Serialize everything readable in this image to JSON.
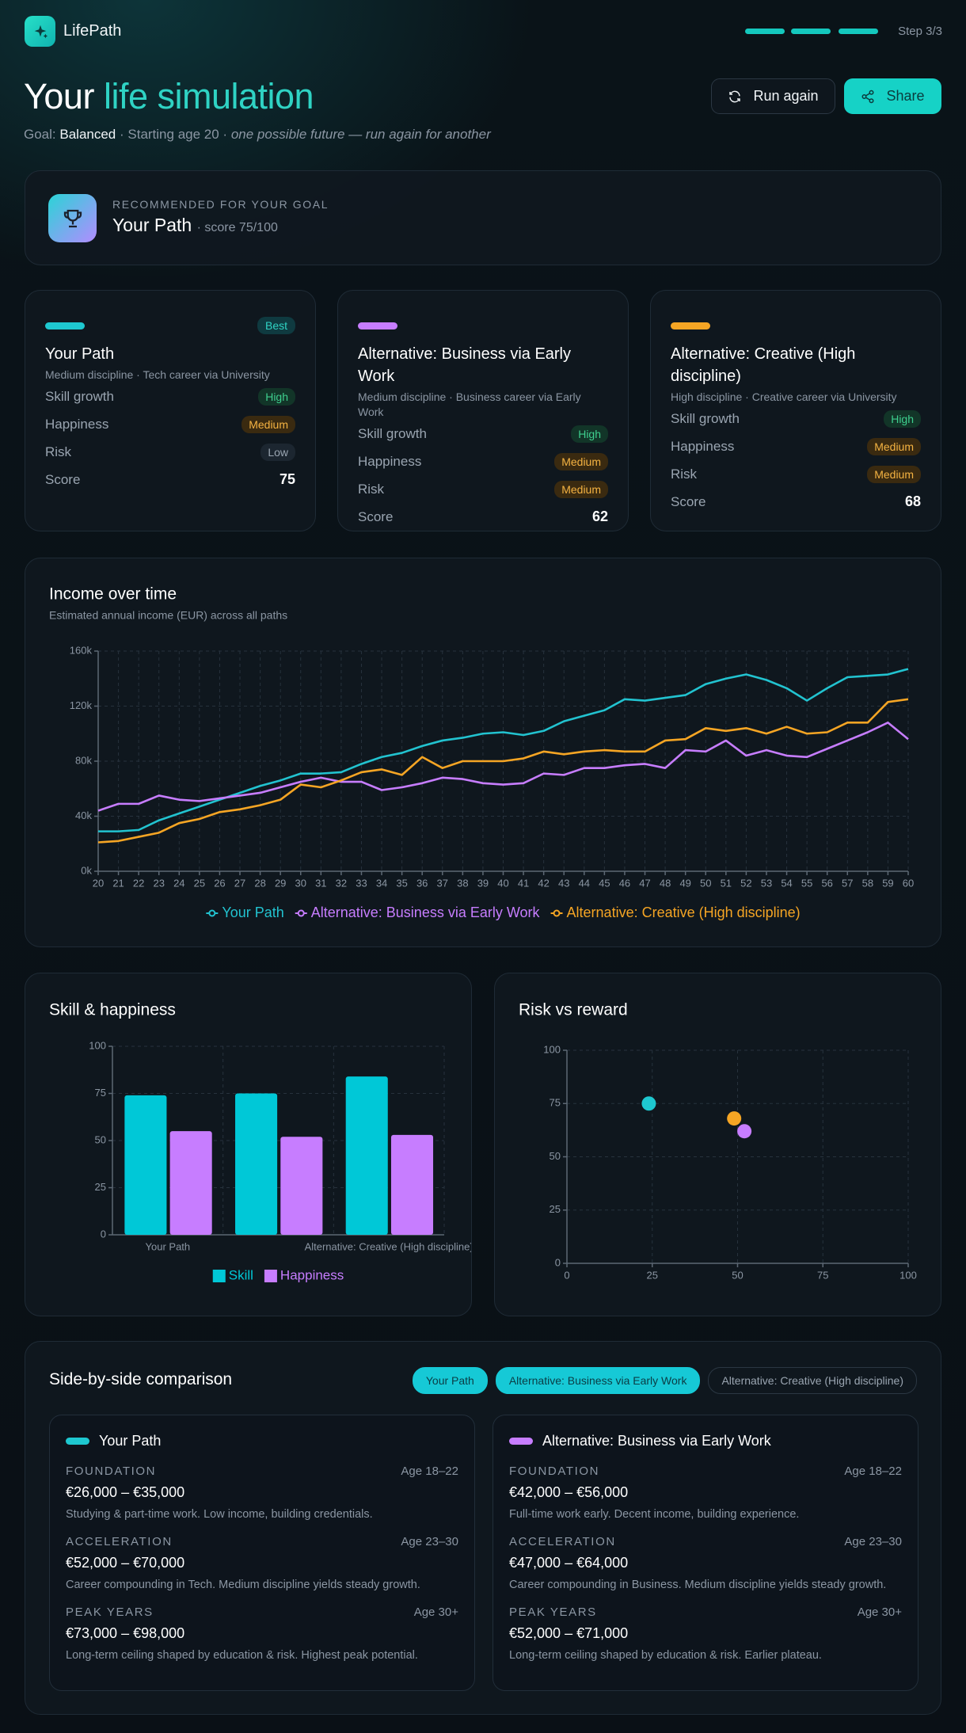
{
  "header": {
    "brand": "LifePath",
    "step": "Step 3/3"
  },
  "hero": {
    "title_prefix": "Your",
    "title_highlight": "life simulation",
    "goal_label": "Goal:",
    "goal": "Balanced",
    "age_text": "· Starting age 20 ·",
    "note": "one possible future — run again for another",
    "run_again": "Run again",
    "share": "Share"
  },
  "recommended": {
    "label": "RECOMMENDED FOR YOUR GOAL",
    "name": "Your Path",
    "score": "· score 75/100"
  },
  "paths": [
    {
      "name": "Your Path",
      "badge": "Best",
      "color": "#1ec8d0",
      "subtitle": "Medium discipline · Tech career via University",
      "metrics": [
        {
          "label": "Skill growth",
          "value": "High"
        },
        {
          "label": "Happiness",
          "value": "Medium"
        },
        {
          "label": "Risk",
          "value": "Low"
        }
      ],
      "score_label": "Score",
      "score": 75
    },
    {
      "name": "Alternative: Business via Early Work",
      "color": "#c77dff",
      "subtitle": "Medium discipline · Business career via Early Work",
      "metrics": [
        {
          "label": "Skill growth",
          "value": "High"
        },
        {
          "label": "Happiness",
          "value": "Medium"
        },
        {
          "label": "Risk",
          "value": "Medium"
        }
      ],
      "score_label": "Score",
      "score": 62
    },
    {
      "name": "Alternative: Creative (High discipline)",
      "color": "#f5a524",
      "subtitle": "High discipline · Creative career via University",
      "metrics": [
        {
          "label": "Skill growth",
          "value": "High"
        },
        {
          "label": "Happiness",
          "value": "Medium"
        },
        {
          "label": "Risk",
          "value": "Medium"
        }
      ],
      "score_label": "Score",
      "score": 68
    }
  ],
  "chart_data": [
    {
      "type": "line",
      "title": "Income over time",
      "subtitle": "Estimated annual income (EUR) across all paths",
      "x": [
        20,
        21,
        22,
        23,
        24,
        25,
        26,
        27,
        28,
        29,
        30,
        31,
        32,
        33,
        34,
        35,
        36,
        37,
        38,
        39,
        40,
        41,
        42,
        43,
        44,
        45,
        46,
        47,
        48,
        49,
        50,
        51,
        52,
        53,
        54,
        55,
        56,
        57,
        58,
        59,
        60
      ],
      "xlim": [
        20,
        60
      ],
      "ylim": [
        0,
        160000
      ],
      "yticks": [
        {
          "value": 0,
          "label": "0k"
        },
        {
          "value": 40000,
          "label": "40k"
        },
        {
          "value": 80000,
          "label": "80k"
        },
        {
          "value": 120000,
          "label": "120k"
        },
        {
          "value": 160000,
          "label": "160k"
        }
      ],
      "grid": true,
      "series": [
        {
          "name": "Your Path",
          "color": "#22c3d0",
          "values": [
            29000,
            29000,
            30000,
            37000,
            42000,
            47000,
            52000,
            57000,
            62000,
            66000,
            71000,
            71000,
            72000,
            78000,
            83000,
            86000,
            91000,
            95000,
            97000,
            100000,
            101000,
            99000,
            102000,
            109000,
            113000,
            117000,
            125000,
            124000,
            126000,
            128000,
            136000,
            140000,
            143000,
            139000,
            133000,
            124000,
            133000,
            141000,
            142000,
            143000,
            147000
          ]
        },
        {
          "name": "Alternative: Business via Early Work",
          "color": "#c77dff",
          "values": [
            44000,
            49000,
            49000,
            55000,
            52000,
            51000,
            53000,
            55000,
            57000,
            61000,
            65000,
            68000,
            65000,
            65000,
            59000,
            61000,
            64000,
            68000,
            67000,
            64000,
            63000,
            64000,
            71000,
            70000,
            75000,
            75000,
            77000,
            78000,
            75000,
            88000,
            87000,
            95000,
            84000,
            88000,
            84000,
            83000,
            89000,
            95000,
            101000,
            108000,
            96000
          ]
        },
        {
          "name": "Alternative: Creative (High discipline)",
          "color": "#f5a524",
          "values": [
            21000,
            22000,
            25000,
            28000,
            35000,
            38000,
            43000,
            45000,
            48000,
            52000,
            63000,
            61000,
            66000,
            72000,
            74000,
            70000,
            83000,
            75000,
            80000,
            80000,
            80000,
            82000,
            87000,
            85000,
            87000,
            88000,
            87000,
            87000,
            95000,
            96000,
            104000,
            102000,
            104000,
            100000,
            105000,
            100000,
            101000,
            108000,
            108000,
            123000,
            125000
          ]
        }
      ]
    },
    {
      "type": "bar",
      "title": "Skill & happiness",
      "categories": [
        "Your Path",
        null,
        "Alternative: Creative (High discipline)"
      ],
      "ylim": [
        0,
        100
      ],
      "yticks": [
        0,
        25,
        50,
        75,
        100
      ],
      "grid": true,
      "series": [
        {
          "name": "Skill",
          "color": "#00c8d7",
          "values": [
            74,
            75,
            84
          ]
        },
        {
          "name": "Happiness",
          "color": "#c77dff",
          "values": [
            55,
            52,
            53
          ]
        }
      ]
    },
    {
      "type": "scatter",
      "title": "Risk vs reward",
      "x": [
        24,
        49,
        52
      ],
      "values": [
        75,
        68,
        62
      ],
      "colors": [
        "#1ec8d0",
        "#f5a524",
        "#c77dff"
      ],
      "xlim": [
        0,
        100
      ],
      "xticks": [
        0,
        25,
        50,
        75,
        100
      ],
      "ylim": [
        0,
        100
      ],
      "yticks": [
        0,
        25,
        50,
        75,
        100
      ],
      "grid": true
    }
  ],
  "comparison": {
    "title": "Side-by-side comparison",
    "tabs": [
      {
        "label": "Your Path",
        "selected": true
      },
      {
        "label": "Alternative: Business via Early Work",
        "selected": true
      },
      {
        "label": "Alternative: Creative (High discipline)",
        "selected": false
      }
    ],
    "cards": [
      {
        "name": "Your Path",
        "color": "#1ec8d0",
        "phases": [
          {
            "label": "FOUNDATION",
            "ages": "Age 18–22",
            "range": "€26,000 – €35,000",
            "desc": "Studying & part-time work. Low income, building credentials."
          },
          {
            "label": "ACCELERATION",
            "ages": "Age 23–30",
            "range": "€52,000 – €70,000",
            "desc": "Career compounding in Tech. Medium discipline yields steady growth."
          },
          {
            "label": "PEAK YEARS",
            "ages": "Age 30+",
            "range": "€73,000 – €98,000",
            "desc": "Long-term ceiling shaped by education & risk. Highest peak potential."
          }
        ]
      },
      {
        "name": "Alternative: Business via Early Work",
        "color": "#c77dff",
        "phases": [
          {
            "label": "FOUNDATION",
            "ages": "Age 18–22",
            "range": "€42,000 – €56,000",
            "desc": "Full-time work early. Decent income, building experience."
          },
          {
            "label": "ACCELERATION",
            "ages": "Age 23–30",
            "range": "€47,000 – €64,000",
            "desc": "Career compounding in Business. Medium discipline yields steady growth."
          },
          {
            "label": "PEAK YEARS",
            "ages": "Age 30+",
            "range": "€52,000 – €71,000",
            "desc": "Long-term ceiling shaped by education & risk. Earlier plateau."
          }
        ]
      }
    ]
  }
}
